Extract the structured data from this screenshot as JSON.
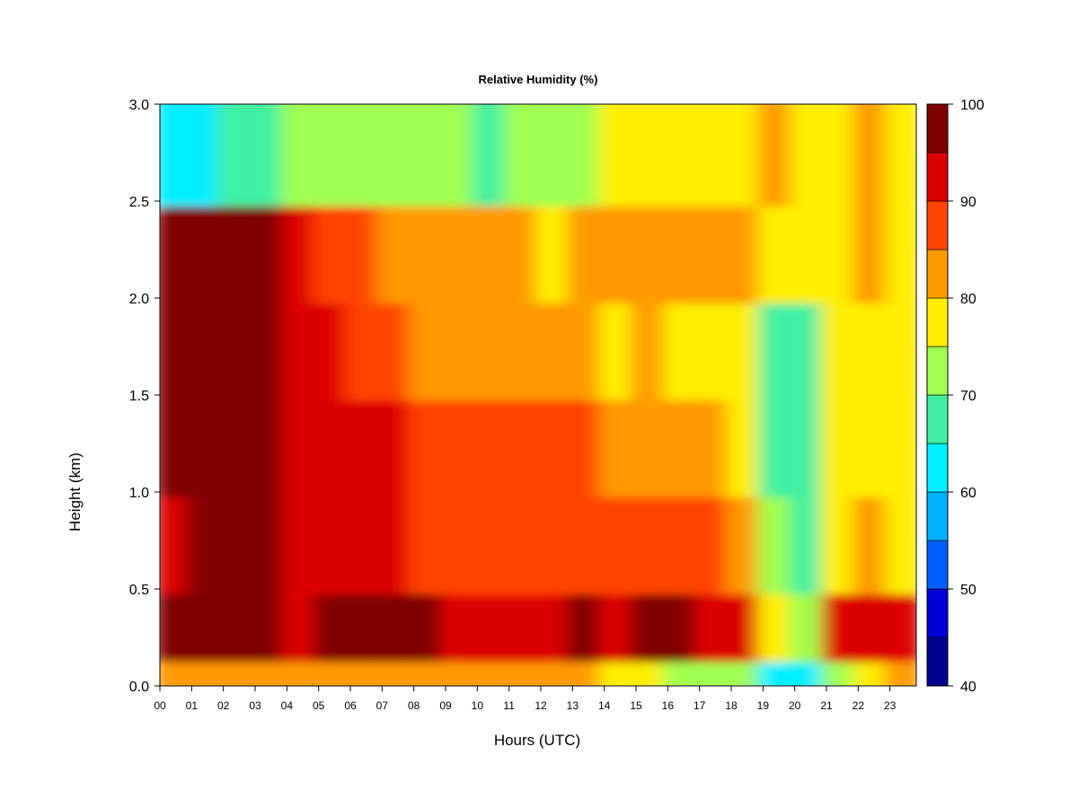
{
  "chart_data": {
    "type": "heatmap",
    "title": "Relative Humidity (%)",
    "xlabel": "Hours (UTC)",
    "ylabel": "Height (km)",
    "xlim": [
      0,
      23.83
    ],
    "ylim": [
      0,
      3.0
    ],
    "x_ticks": [
      "00",
      "01",
      "02",
      "03",
      "04",
      "05",
      "06",
      "07",
      "08",
      "09",
      "10",
      "11",
      "12",
      "13",
      "14",
      "15",
      "16",
      "17",
      "18",
      "19",
      "20",
      "21",
      "22",
      "23"
    ],
    "y_ticks": [
      "0.0",
      "0.5",
      "1.0",
      "1.5",
      "2.0",
      "2.5",
      "3.0"
    ],
    "colorbar": {
      "levels": [
        40,
        45,
        50,
        55,
        60,
        65,
        70,
        75,
        80,
        85,
        90,
        95,
        100
      ],
      "tick_labels": [
        "40",
        "50",
        "60",
        "70",
        "80",
        "90",
        "100"
      ],
      "colors": [
        "#00008f",
        "#0000d8",
        "#0060ff",
        "#00b0ff",
        "#00eeff",
        "#40f0a0",
        "#a0ff50",
        "#ffee00",
        "#ff9900",
        "#ff4400",
        "#dd0000",
        "#800000"
      ]
    },
    "heights_km": [
      0.05,
      0.25,
      0.75,
      1.25,
      1.75,
      2.25,
      2.75
    ],
    "hours": [
      0,
      1,
      2,
      3,
      4,
      5,
      6,
      7,
      8,
      9,
      10,
      11,
      12,
      13,
      14,
      15,
      16,
      17,
      18,
      19,
      20,
      21,
      22,
      23
    ],
    "values": [
      [
        82,
        84,
        84,
        84,
        83,
        83,
        84,
        83,
        83,
        83,
        82,
        81,
        81,
        80,
        78,
        76,
        74,
        72,
        70,
        64,
        63,
        70,
        78,
        80
      ],
      [
        96,
        97,
        96,
        96,
        93,
        97,
        97,
        96,
        95,
        94,
        93,
        93,
        94,
        95,
        94,
        96,
        96,
        94,
        93,
        79,
        74,
        92,
        93,
        92
      ],
      [
        93,
        96,
        96,
        96,
        90,
        92,
        92,
        91,
        89,
        88,
        88,
        89,
        89,
        89,
        87,
        88,
        88,
        87,
        83,
        72,
        68,
        79,
        80,
        79
      ],
      [
        98,
        98,
        98,
        97,
        92,
        94,
        92,
        90,
        88,
        86,
        85,
        86,
        86,
        86,
        83,
        84,
        84,
        82,
        79,
        68,
        66,
        76,
        79,
        78
      ],
      [
        100,
        100,
        100,
        99,
        91,
        90,
        88,
        85,
        84,
        82,
        80,
        80,
        80,
        80,
        79,
        80,
        79,
        79,
        76,
        68,
        66,
        76,
        78,
        77
      ],
      [
        97,
        96,
        97,
        95,
        90,
        88,
        85,
        83,
        82,
        81,
        80,
        80,
        79,
        80,
        80,
        80,
        80,
        80,
        80,
        79,
        79,
        79,
        80,
        79
      ],
      [
        62,
        60,
        65,
        68,
        72,
        70,
        70,
        70,
        70,
        70,
        69,
        70,
        70,
        72,
        75,
        76,
        77,
        78,
        79,
        80,
        79,
        79,
        80,
        78
      ]
    ]
  }
}
